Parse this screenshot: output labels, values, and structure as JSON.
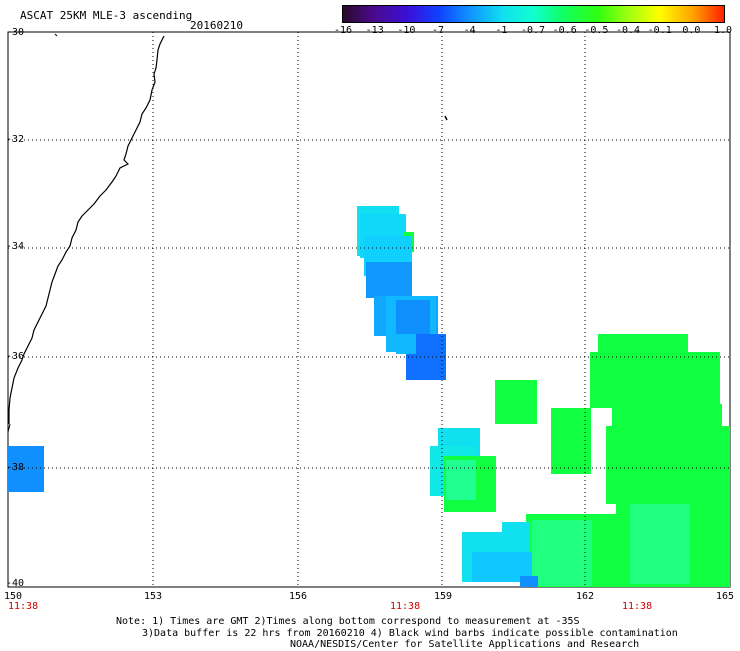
{
  "header": {
    "title": "ASCAT 25KM MLE-3 ascending",
    "date": "20160210"
  },
  "colorbar": {
    "labels": [
      "-16",
      "-13",
      "-10",
      "-7",
      "-4",
      "-1",
      "-0.7",
      "-0.6",
      "-0.5",
      "-0.4",
      "-0.1",
      "0.0",
      "1.0"
    ],
    "colors": [
      "#2a0a2a",
      "#4b0a8c",
      "#3a10d8",
      "#1040ff",
      "#1090ff",
      "#10e0f0",
      "#10ffd0",
      "#10ff60",
      "#30ff10",
      "#a0ff10",
      "#ffff00",
      "#ffa000",
      "#ff2000"
    ]
  },
  "axes": {
    "lat_labels": [
      "-30",
      "-32",
      "-34",
      "-36",
      "-38",
      "-40"
    ],
    "lon_labels": [
      "150",
      "153",
      "156",
      "159",
      "162",
      "165"
    ],
    "lat_range": [
      -40,
      -30
    ],
    "lon_range": [
      150,
      165
    ]
  },
  "times": [
    "11:38",
    "11:38",
    "11:38"
  ],
  "notes": {
    "line1": "Note: 1) Times are GMT 2)Times along bottom correspond to measurement at -35S",
    "line2": "3)Data buffer is 22 hrs from 20160210 4) Black wind barbs indicate possible contamination",
    "line3": "NOAA/NESDIS/Center for Satellite Applications and Research"
  },
  "swath_colors": {
    "cyan": "#10e0f0",
    "light_blue": "#10b8ff",
    "blue": "#1070ff",
    "green": "#10ff40",
    "seafoam": "#20ff90"
  }
}
